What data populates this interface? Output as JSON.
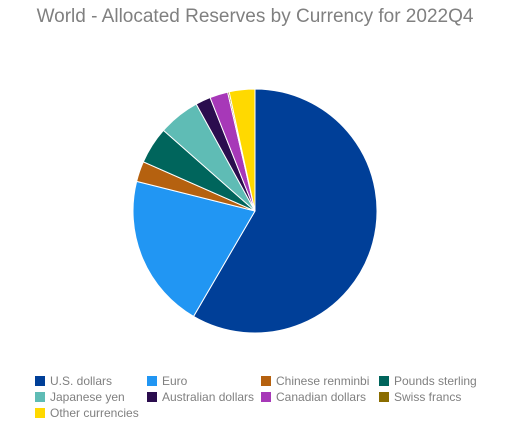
{
  "chart_data": {
    "type": "pie",
    "title": "World - Allocated Reserves by Currency for 2022Q4",
    "slices": [
      {
        "label": "U.S. dollars",
        "value": 58.4,
        "color": "#003f98"
      },
      {
        "label": "Euro",
        "value": 20.5,
        "color": "#2196f3"
      },
      {
        "label": "Chinese renminbi",
        "value": 2.7,
        "color": "#b5610f"
      },
      {
        "label": "Pounds sterling",
        "value": 4.9,
        "color": "#00655c"
      },
      {
        "label": "Japanese yen",
        "value": 5.5,
        "color": "#5fbcb5"
      },
      {
        "label": "Australian dollars",
        "value": 2.0,
        "color": "#2b0d4e"
      },
      {
        "label": "Canadian dollars",
        "value": 2.4,
        "color": "#a738b8"
      },
      {
        "label": "Swiss francs",
        "value": 0.2,
        "color": "#8a6d00"
      },
      {
        "label": "Other currencies",
        "value": 3.4,
        "color": "#ffd900"
      }
    ],
    "legend_position": "bottom",
    "start_angle": "12 o'clock, clockwise"
  }
}
